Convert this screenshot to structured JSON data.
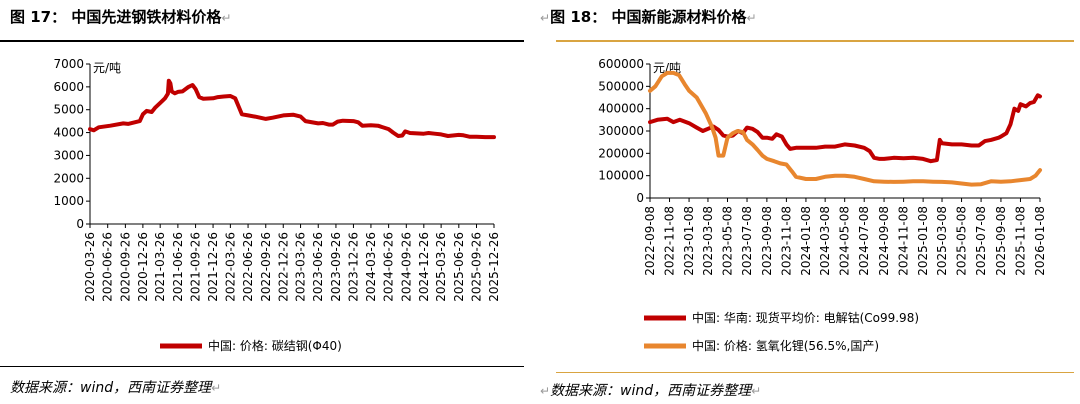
{
  "left": {
    "fig_label": "图",
    "fig_num": "17",
    "fig_sep": "：",
    "title": "中国先进钢铁材料价格",
    "source": "数据来源：wind，西南证券整理"
  },
  "right": {
    "fig_label": "图",
    "fig_num": "18",
    "fig_sep": "：",
    "title": "中国新能源材料价格",
    "source": "数据来源：wind，西南证券整理"
  },
  "colors": {
    "red": "#C00000",
    "orange": "#E8862E",
    "rule_left": "#000000",
    "rule_right": "#D9A441"
  },
  "chart_data": [
    {
      "type": "line",
      "unit_label": "元/吨",
      "ylim": [
        0,
        7000
      ],
      "yticks": [
        0,
        1000,
        2000,
        3000,
        4000,
        5000,
        6000,
        7000
      ],
      "xlim": [
        "2020-03-26",
        "2025-12-26"
      ],
      "xticks": [
        "2020-03-26",
        "2020-06-26",
        "2020-09-26",
        "2020-12-26",
        "2021-03-26",
        "2021-06-26",
        "2021-09-26",
        "2021-12-26",
        "2022-03-26",
        "2022-06-26",
        "2022-09-26",
        "2022-12-26",
        "2023-03-26",
        "2023-06-26",
        "2023-09-26",
        "2023-12-26",
        "2024-03-26",
        "2024-06-26",
        "2024-09-26",
        "2024-12-26",
        "2025-03-26",
        "2025-06-26",
        "2025-09-26",
        "2025-12-26"
      ],
      "grid": false,
      "legend_position": "bottom",
      "series": [
        {
          "name": "中国: 价格: 碳结钢(Φ40)",
          "color": "#C00000",
          "points": [
            [
              "2020-03-26",
              4150
            ],
            [
              "2020-04-15",
              4100
            ],
            [
              "2020-05-10",
              4230
            ],
            [
              "2020-07-10",
              4300
            ],
            [
              "2020-09-15",
              4400
            ],
            [
              "2020-10-10",
              4380
            ],
            [
              "2020-12-10",
              4500
            ],
            [
              "2020-12-26",
              4800
            ],
            [
              "2021-01-15",
              4950
            ],
            [
              "2021-02-10",
              4900
            ],
            [
              "2021-03-01",
              5100
            ],
            [
              "2021-03-26",
              5300
            ],
            [
              "2021-04-20",
              5500
            ],
            [
              "2021-05-05",
              5700
            ],
            [
              "2021-05-10",
              6270
            ],
            [
              "2021-05-18",
              6150
            ],
            [
              "2021-05-25",
              5800
            ],
            [
              "2021-06-10",
              5720
            ],
            [
              "2021-06-26",
              5780
            ],
            [
              "2021-07-20",
              5800
            ],
            [
              "2021-08-20",
              6000
            ],
            [
              "2021-09-10",
              6080
            ],
            [
              "2021-09-26",
              5900
            ],
            [
              "2021-10-15",
              5550
            ],
            [
              "2021-11-05",
              5480
            ],
            [
              "2021-12-26",
              5500
            ],
            [
              "2022-01-20",
              5550
            ],
            [
              "2022-02-20",
              5580
            ],
            [
              "2022-03-26",
              5600
            ],
            [
              "2022-04-20",
              5500
            ],
            [
              "2022-05-10",
              5100
            ],
            [
              "2022-05-25",
              4800
            ],
            [
              "2022-06-26",
              4750
            ],
            [
              "2022-08-01",
              4700
            ],
            [
              "2022-09-26",
              4600
            ],
            [
              "2022-11-01",
              4650
            ],
            [
              "2022-12-26",
              4750
            ],
            [
              "2023-02-15",
              4780
            ],
            [
              "2023-03-26",
              4700
            ],
            [
              "2023-04-20",
              4500
            ],
            [
              "2023-06-26",
              4400
            ],
            [
              "2023-07-20",
              4420
            ],
            [
              "2023-08-20",
              4350
            ],
            [
              "2023-09-10",
              4350
            ],
            [
              "2023-10-05",
              4480
            ],
            [
              "2023-11-01",
              4520
            ],
            [
              "2023-12-26",
              4500
            ],
            [
              "2024-01-20",
              4450
            ],
            [
              "2024-02-10",
              4300
            ],
            [
              "2024-03-26",
              4320
            ],
            [
              "2024-05-01",
              4300
            ],
            [
              "2024-06-26",
              4150
            ],
            [
              "2024-07-20",
              4000
            ],
            [
              "2024-08-15",
              3850
            ],
            [
              "2024-09-05",
              3870
            ],
            [
              "2024-09-20",
              4050
            ],
            [
              "2024-10-15",
              3980
            ],
            [
              "2024-12-26",
              3950
            ],
            [
              "2025-01-20",
              3980
            ],
            [
              "2025-02-20",
              3950
            ],
            [
              "2025-03-26",
              3920
            ],
            [
              "2025-05-01",
              3850
            ],
            [
              "2025-06-26",
              3900
            ],
            [
              "2025-07-20",
              3880
            ],
            [
              "2025-08-20",
              3820
            ],
            [
              "2025-09-26",
              3820
            ],
            [
              "2025-11-10",
              3800
            ],
            [
              "2025-12-26",
              3800
            ]
          ]
        }
      ]
    },
    {
      "type": "line",
      "unit_label": "元/吨",
      "ylim": [
        0,
        600000
      ],
      "yticks": [
        0,
        100000,
        200000,
        300000,
        400000,
        500000,
        600000
      ],
      "xlim": [
        "2022-09-08",
        "2026-01-08"
      ],
      "xticks": [
        "2022-09-08",
        "2022-11-08",
        "2023-01-08",
        "2023-03-08",
        "2023-05-08",
        "2023-07-08",
        "2023-09-08",
        "2023-11-08",
        "2024-01-08",
        "2024-03-08",
        "2024-05-08",
        "2024-07-08",
        "2024-09-08",
        "2024-11-08",
        "2025-01-08",
        "2025-03-08",
        "2025-05-08",
        "2025-07-08",
        "2025-09-08",
        "2025-11-08",
        "2026-01-08"
      ],
      "grid": false,
      "legend_position": "bottom",
      "series": [
        {
          "name": "中国: 华南: 现货平均价: 电解钴(Co99.98)",
          "color": "#C00000",
          "points": [
            [
              "2022-09-08",
              340000
            ],
            [
              "2022-10-01",
              350000
            ],
            [
              "2022-11-01",
              355000
            ],
            [
              "2022-11-20",
              340000
            ],
            [
              "2022-12-10",
              350000
            ],
            [
              "2023-01-08",
              335000
            ],
            [
              "2023-02-01",
              315000
            ],
            [
              "2023-02-20",
              300000
            ],
            [
              "2023-03-08",
              310000
            ],
            [
              "2023-03-25",
              320000
            ],
            [
              "2023-04-10",
              305000
            ],
            [
              "2023-04-25",
              280000
            ],
            [
              "2023-05-08",
              275000
            ],
            [
              "2023-05-25",
              280000
            ],
            [
              "2023-06-10",
              300000
            ],
            [
              "2023-06-25",
              290000
            ],
            [
              "2023-07-08",
              315000
            ],
            [
              "2023-07-25",
              310000
            ],
            [
              "2023-08-10",
              295000
            ],
            [
              "2023-08-25",
              270000
            ],
            [
              "2023-09-08",
              270000
            ],
            [
              "2023-09-25",
              265000
            ],
            [
              "2023-10-08",
              285000
            ],
            [
              "2023-10-25",
              275000
            ],
            [
              "2023-11-08",
              240000
            ],
            [
              "2023-11-20",
              220000
            ],
            [
              "2023-12-08",
              225000
            ],
            [
              "2024-01-08",
              225000
            ],
            [
              "2024-02-08",
              225000
            ],
            [
              "2024-03-08",
              230000
            ],
            [
              "2024-04-08",
              230000
            ],
            [
              "2024-05-08",
              240000
            ],
            [
              "2024-06-08",
              235000
            ],
            [
              "2024-07-08",
              225000
            ],
            [
              "2024-07-25",
              210000
            ],
            [
              "2024-08-08",
              180000
            ],
            [
              "2024-08-25",
              175000
            ],
            [
              "2024-09-08",
              175000
            ],
            [
              "2024-10-08",
              180000
            ],
            [
              "2024-11-08",
              178000
            ],
            [
              "2024-12-08",
              180000
            ],
            [
              "2025-01-08",
              175000
            ],
            [
              "2025-02-01",
              165000
            ],
            [
              "2025-02-20",
              170000
            ],
            [
              "2025-03-01",
              260000
            ],
            [
              "2025-03-08",
              245000
            ],
            [
              "2025-04-08",
              240000
            ],
            [
              "2025-05-08",
              240000
            ],
            [
              "2025-06-08",
              235000
            ],
            [
              "2025-07-01",
              235000
            ],
            [
              "2025-07-20",
              255000
            ],
            [
              "2025-08-08",
              260000
            ],
            [
              "2025-09-01",
              270000
            ],
            [
              "2025-09-08",
              275000
            ],
            [
              "2025-09-25",
              290000
            ],
            [
              "2025-10-08",
              330000
            ],
            [
              "2025-10-20",
              400000
            ],
            [
              "2025-11-01",
              390000
            ],
            [
              "2025-11-08",
              420000
            ],
            [
              "2025-11-25",
              410000
            ],
            [
              "2025-12-08",
              425000
            ],
            [
              "2025-12-20",
              430000
            ],
            [
              "2026-01-01",
              460000
            ],
            [
              "2026-01-08",
              455000
            ]
          ]
        },
        {
          "name": "中国: 价格: 氢氧化锂(56.5%,国产)",
          "color": "#E8862E",
          "points": [
            [
              "2022-09-08",
              480000
            ],
            [
              "2022-09-25",
              500000
            ],
            [
              "2022-10-15",
              545000
            ],
            [
              "2022-11-01",
              560000
            ],
            [
              "2022-11-20",
              560000
            ],
            [
              "2022-12-08",
              550000
            ],
            [
              "2022-12-25",
              510000
            ],
            [
              "2023-01-08",
              480000
            ],
            [
              "2023-02-01",
              450000
            ],
            [
              "2023-03-01",
              380000
            ],
            [
              "2023-03-20",
              320000
            ],
            [
              "2023-04-01",
              270000
            ],
            [
              "2023-04-10",
              190000
            ],
            [
              "2023-04-25",
              190000
            ],
            [
              "2023-05-08",
              270000
            ],
            [
              "2023-05-25",
              290000
            ],
            [
              "2023-06-08",
              300000
            ],
            [
              "2023-06-25",
              295000
            ],
            [
              "2023-07-08",
              260000
            ],
            [
              "2023-07-25",
              240000
            ],
            [
              "2023-08-10",
              215000
            ],
            [
              "2023-08-25",
              190000
            ],
            [
              "2023-09-08",
              175000
            ],
            [
              "2023-10-01",
              165000
            ],
            [
              "2023-10-20",
              155000
            ],
            [
              "2023-11-08",
              150000
            ],
            [
              "2023-11-25",
              120000
            ],
            [
              "2023-12-08",
              95000
            ],
            [
              "2024-01-08",
              85000
            ],
            [
              "2024-02-08",
              85000
            ],
            [
              "2024-03-08",
              95000
            ],
            [
              "2024-04-08",
              100000
            ],
            [
              "2024-05-08",
              100000
            ],
            [
              "2024-06-08",
              95000
            ],
            [
              "2024-07-08",
              85000
            ],
            [
              "2024-08-08",
              75000
            ],
            [
              "2024-09-08",
              73000
            ],
            [
              "2024-10-08",
              72000
            ],
            [
              "2024-11-08",
              73000
            ],
            [
              "2024-12-08",
              75000
            ],
            [
              "2025-01-08",
              75000
            ],
            [
              "2025-02-08",
              73000
            ],
            [
              "2025-03-08",
              72000
            ],
            [
              "2025-04-08",
              70000
            ],
            [
              "2025-05-08",
              65000
            ],
            [
              "2025-06-08",
              60000
            ],
            [
              "2025-07-08",
              62000
            ],
            [
              "2025-08-08",
              75000
            ],
            [
              "2025-09-08",
              73000
            ],
            [
              "2025-10-08",
              75000
            ],
            [
              "2025-11-08",
              80000
            ],
            [
              "2025-12-08",
              85000
            ],
            [
              "2025-12-25",
              100000
            ],
            [
              "2026-01-08",
              125000
            ]
          ]
        }
      ]
    }
  ]
}
